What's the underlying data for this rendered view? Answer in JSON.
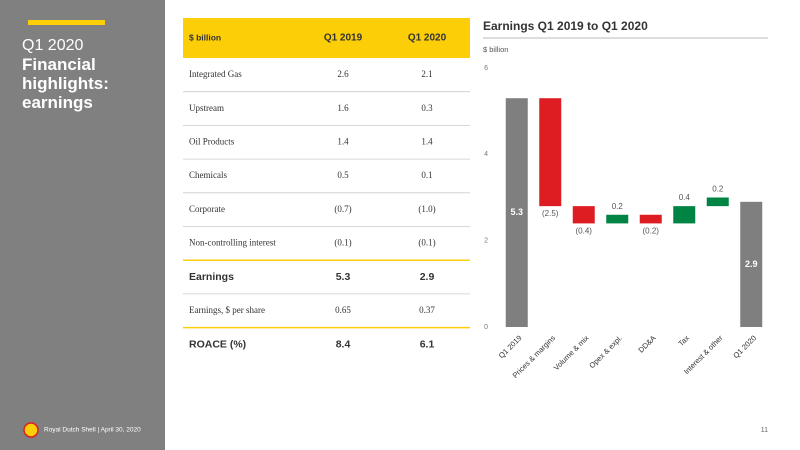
{
  "sidebar": {
    "kicker": "Q1 2020",
    "title": "Financial highlights: earnings"
  },
  "footer": {
    "text": "Royal Dutch Shell | April 30, 2020",
    "page": "11"
  },
  "table": {
    "header": [
      "$ billion",
      "Q1 2019",
      "Q1 2020"
    ],
    "rows": [
      [
        "Integrated Gas",
        "2.6",
        "2.1"
      ],
      [
        "Upstream",
        "1.6",
        "0.3"
      ],
      [
        "Oil Products",
        "1.4",
        "1.4"
      ],
      [
        "Chemicals",
        "0.5",
        "0.1"
      ],
      [
        "Corporate",
        "(0.7)",
        "(1.0)"
      ],
      [
        "Non-controlling interest",
        "(0.1)",
        "(0.1)"
      ],
      [
        "Earnings",
        "5.3",
        "2.9"
      ],
      [
        "Earnings, $ per share",
        "0.65",
        "0.37"
      ],
      [
        "ROACE (%)",
        "8.4",
        "6.1"
      ]
    ]
  },
  "chart_data": {
    "type": "waterfall",
    "title": "Earnings Q1 2019 to Q1 2020",
    "y_label": "$ billion",
    "categories": [
      "Q1 2019",
      "Prices & margins",
      "Volume & mix",
      "Opex & expl.",
      "DD&A",
      "Tax",
      "Interest & other",
      "Q1 2020"
    ],
    "values": [
      5.3,
      -2.5,
      -0.4,
      0.2,
      -0.2,
      0.4,
      0.2,
      2.9
    ],
    "value_labels": [
      "5.3",
      "(2.5)",
      "(0.4)",
      "0.2",
      "(0.2)",
      "0.4",
      "0.2",
      "2.9"
    ],
    "colors": {
      "total": "#7f7f7f",
      "decrease": "#dd1d21",
      "increase": "#008443"
    },
    "ylim": [
      0,
      6
    ],
    "yticks": [
      0,
      2,
      4,
      6
    ]
  }
}
